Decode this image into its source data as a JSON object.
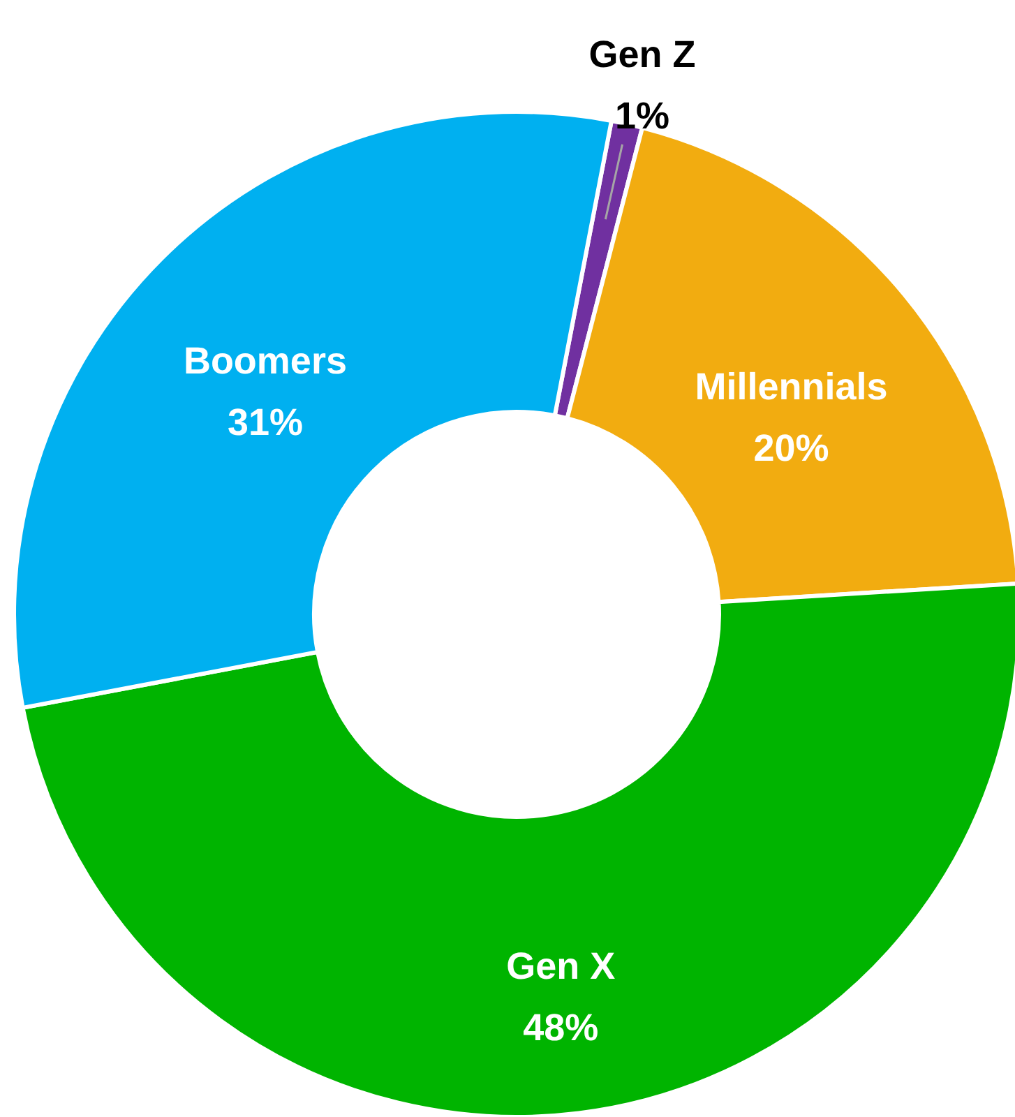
{
  "chart_data": {
    "type": "donut",
    "categories": [
      "Gen Z",
      "Millennials",
      "Gen X",
      "Boomers"
    ],
    "values": [
      1,
      20,
      48,
      31
    ],
    "value_labels": [
      "1%",
      "20%",
      "48%",
      "31%"
    ],
    "colors": [
      "#7030a0",
      "#f2ac10",
      "#00b400",
      "#00b0f0"
    ]
  }
}
